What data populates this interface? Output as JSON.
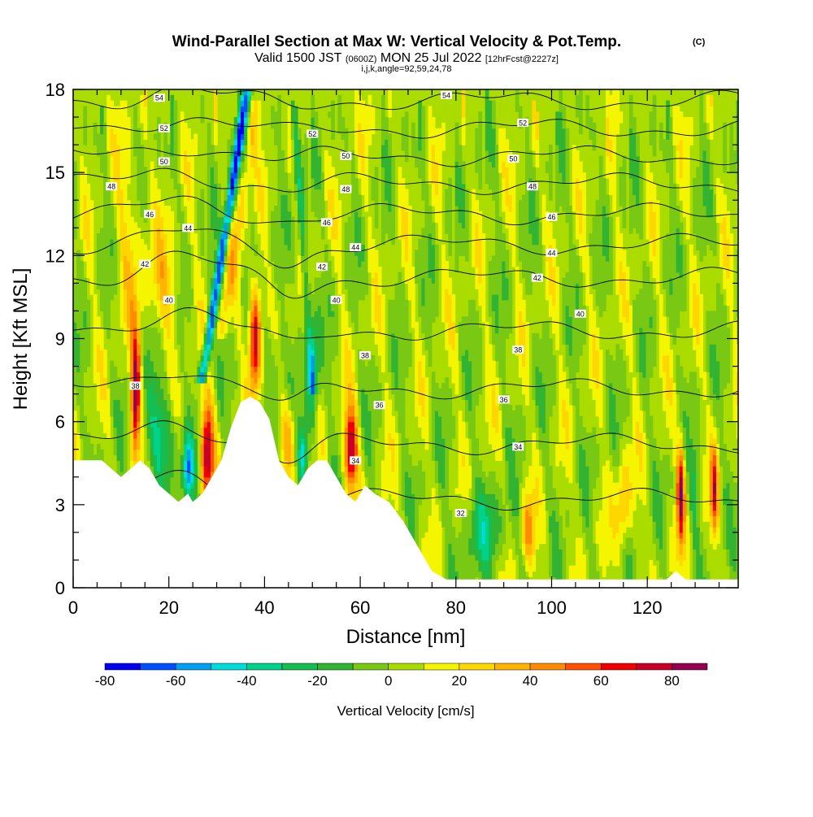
{
  "chart_data": {
    "type": "heatmap",
    "title": "Wind-Parallel Section at Max W: Vertical Velocity & Pot.Temp.",
    "title_mark": "(C)",
    "subtitle": {
      "prefix": "Valid 1500 JST",
      "utc": "(0600Z)",
      "date": "MON 25 Jul 2022",
      "forecast": "[12hrFcst@2227z]"
    },
    "subtitle2": "i,j,k,angle=92,59,24,78",
    "xlabel": "Distance [nm]",
    "ylabel": "Height [Kft MSL]",
    "xlim": [
      0,
      139
    ],
    "ylim": [
      0,
      18
    ],
    "x_ticks": [
      0,
      20,
      40,
      60,
      80,
      100,
      120
    ],
    "y_ticks": [
      0,
      3,
      6,
      9,
      12,
      15,
      18
    ],
    "colorbar": {
      "label": "Vertical Velocity [cm/s]",
      "levels": [
        -80,
        -70,
        -60,
        -50,
        -40,
        -30,
        -20,
        -10,
        0,
        10,
        20,
        30,
        40,
        50,
        60,
        70,
        80,
        90
      ],
      "tick_labels": [
        -80,
        -60,
        -40,
        -20,
        0,
        20,
        40,
        60,
        80
      ],
      "colors": [
        "#0000ee",
        "#0050ff",
        "#00a0f0",
        "#00dcdc",
        "#00d28c",
        "#14be50",
        "#32b432",
        "#78c814",
        "#aadc00",
        "#f5f500",
        "#ffd700",
        "#ffb400",
        "#ff8c00",
        "#ff5000",
        "#f00000",
        "#c80028",
        "#960050",
        "#6e0078"
      ]
    },
    "terrain": [
      [
        0,
        4.6
      ],
      [
        6,
        4.6
      ],
      [
        8,
        4.3
      ],
      [
        10,
        4.0
      ],
      [
        12,
        4.3
      ],
      [
        14,
        4.6
      ],
      [
        16,
        4.3
      ],
      [
        18,
        3.7
      ],
      [
        20,
        3.4
      ],
      [
        22,
        3.1
      ],
      [
        24,
        3.4
      ],
      [
        25,
        3.1
      ],
      [
        27,
        3.4
      ],
      [
        29,
        4.0
      ],
      [
        31,
        4.6
      ],
      [
        33,
        5.8
      ],
      [
        35,
        6.7
      ],
      [
        37,
        6.9
      ],
      [
        39,
        6.7
      ],
      [
        41,
        6.1
      ],
      [
        43,
        4.6
      ],
      [
        45,
        4.0
      ],
      [
        47,
        3.7
      ],
      [
        49,
        4.3
      ],
      [
        51,
        4.6
      ],
      [
        53,
        4.6
      ],
      [
        55,
        4.0
      ],
      [
        57,
        3.4
      ],
      [
        59,
        3.1
      ],
      [
        61,
        3.7
      ],
      [
        63,
        3.4
      ],
      [
        66,
        3.1
      ],
      [
        69,
        2.4
      ],
      [
        72,
        1.5
      ],
      [
        75,
        0.6
      ],
      [
        78,
        0.3
      ],
      [
        82,
        0.3
      ],
      [
        90,
        0.3
      ],
      [
        100,
        0.3
      ],
      [
        110,
        0.3
      ],
      [
        124,
        0.3
      ],
      [
        126,
        0.6
      ],
      [
        128,
        0.3
      ],
      [
        134,
        0.3
      ],
      [
        139,
        0.3
      ]
    ],
    "isentrope_labels": [
      {
        "text": "54",
        "x": 18,
        "y": 17.7
      },
      {
        "text": "52",
        "x": 19,
        "y": 16.6
      },
      {
        "text": "50",
        "x": 19,
        "y": 15.4
      },
      {
        "text": "48",
        "x": 8,
        "y": 14.5
      },
      {
        "text": "46",
        "x": 16,
        "y": 13.5
      },
      {
        "text": "44",
        "x": 24,
        "y": 13.0
      },
      {
        "text": "42",
        "x": 15,
        "y": 11.7
      },
      {
        "text": "40",
        "x": 20,
        "y": 10.4
      },
      {
        "text": "38",
        "x": 13,
        "y": 7.3
      },
      {
        "text": "54",
        "x": 78,
        "y": 17.8
      },
      {
        "text": "52",
        "x": 50,
        "y": 16.4
      },
      {
        "text": "50",
        "x": 57,
        "y": 15.6
      },
      {
        "text": "48",
        "x": 57,
        "y": 14.4
      },
      {
        "text": "46",
        "x": 53,
        "y": 13.2
      },
      {
        "text": "44",
        "x": 59,
        "y": 12.3
      },
      {
        "text": "42",
        "x": 52,
        "y": 11.6
      },
      {
        "text": "40",
        "x": 55,
        "y": 10.4
      },
      {
        "text": "38",
        "x": 61,
        "y": 8.4
      },
      {
        "text": "36",
        "x": 64,
        "y": 6.6
      },
      {
        "text": "34",
        "x": 59,
        "y": 4.6
      },
      {
        "text": "52",
        "x": 94,
        "y": 16.8
      },
      {
        "text": "50",
        "x": 92,
        "y": 15.5
      },
      {
        "text": "48",
        "x": 96,
        "y": 14.5
      },
      {
        "text": "46",
        "x": 100,
        "y": 13.4
      },
      {
        "text": "44",
        "x": 100,
        "y": 12.1
      },
      {
        "text": "42",
        "x": 97,
        "y": 11.2
      },
      {
        "text": "40",
        "x": 106,
        "y": 9.9
      },
      {
        "text": "38",
        "x": 93,
        "y": 8.6
      },
      {
        "text": "36",
        "x": 90,
        "y": 6.8
      },
      {
        "text": "34",
        "x": 93,
        "y": 5.1
      },
      {
        "text": "32",
        "x": 81,
        "y": 2.7
      }
    ]
  }
}
